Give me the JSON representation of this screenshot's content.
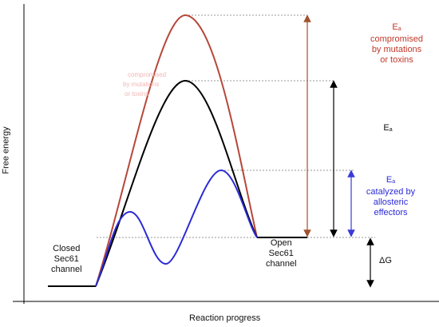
{
  "axes": {
    "y_label": "Free energy",
    "x_label": "Reaction progress"
  },
  "states": {
    "closed": [
      "Closed",
      "Sec61",
      "channel"
    ],
    "open": [
      "Open",
      "Sec61",
      "channel"
    ]
  },
  "annotations": {
    "compromised": {
      "ea": "E",
      "sub": "a",
      "lines": [
        "compromised",
        "by mutations",
        "or toxins"
      ],
      "color": "#c0392b"
    },
    "normal": {
      "ea": "E",
      "sub": "a",
      "color": "#111111"
    },
    "catalyzed": {
      "ea": "E",
      "sub": "a",
      "lines": [
        "catalyzed by",
        "allosteric",
        "effectors"
      ],
      "color": "#2b2bd6"
    },
    "delta_g": "ΔG"
  },
  "ghost_text": [
    "compromised",
    "by mutations",
    "or toxins"
  ],
  "colors": {
    "compromised_curve": "#b5473a",
    "normal_curve": "#000000",
    "catalyzed_curve": "#2b2bd6",
    "compromised_arrow": "#a0522d",
    "normal_arrow": "#000000",
    "catalyzed_arrow": "#3a3ad8",
    "guide_line": "#999999"
  }
}
